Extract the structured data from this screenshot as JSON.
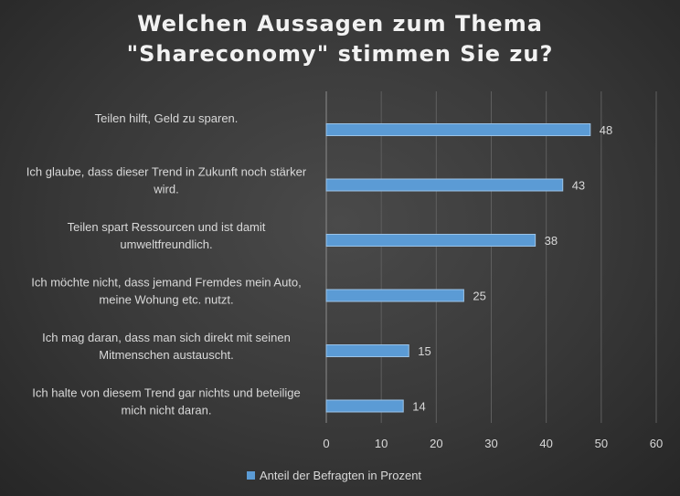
{
  "chart_data": {
    "type": "bar",
    "orientation": "horizontal",
    "title_lines": [
      "Welchen Aussagen zum Thema",
      "\"Shareconomy\" stimmen Sie zu?"
    ],
    "categories": [
      [
        "Teilen hilft, Geld zu sparen."
      ],
      [
        "Ich glaube, dass dieser Trend in Zukunft noch stärker",
        "wird."
      ],
      [
        "Teilen spart Ressourcen und ist damit",
        "umweltfreundlich."
      ],
      [
        "Ich möchte nicht, dass jemand Fremdes mein Auto,",
        "meine Wohung etc. nutzt."
      ],
      [
        "Ich mag daran, dass man sich direkt mit seinen",
        "Mitmenschen austauscht."
      ],
      [
        "Ich halte von diesem Trend gar nichts und beteilige",
        "mich nicht daran."
      ]
    ],
    "series": [
      {
        "name": "Anteil der Befragten in Prozent",
        "values": [
          48,
          43,
          38,
          25,
          15,
          14
        ]
      }
    ],
    "xlim": [
      0,
      60
    ],
    "xticks": [
      0,
      10,
      20,
      30,
      40,
      50,
      60
    ],
    "grid": "vertical",
    "legend": "bottom",
    "colors": {
      "bar": "#5b9bd5",
      "bar_edge": "#9cc3e6",
      "text": "#d9d9d9",
      "grid": "#5f5f5f"
    }
  }
}
